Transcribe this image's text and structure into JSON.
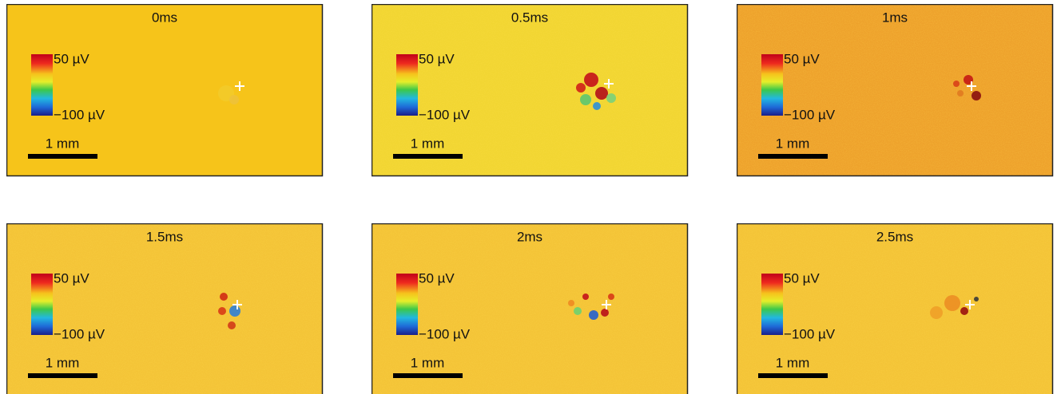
{
  "panels": [
    {
      "title": "0ms",
      "scale_max": "50 µV",
      "scale_min": "−100 µV",
      "scale_bar": "1 mm"
    },
    {
      "title": "0.5ms",
      "scale_max": "50 µV",
      "scale_min": "−100 µV",
      "scale_bar": "1 mm"
    },
    {
      "title": "1ms",
      "scale_max": "50 µV",
      "scale_min": "−100 µV",
      "scale_bar": "1 mm"
    },
    {
      "title": "1.5ms",
      "scale_max": "50 µV",
      "scale_min": "−100 µV",
      "scale_bar": "1 mm"
    },
    {
      "title": "2ms",
      "scale_max": "50 µV",
      "scale_min": "−100 µV",
      "scale_bar": "1 mm"
    },
    {
      "title": "2.5ms",
      "scale_max": "50 µV",
      "scale_min": "−100 µV",
      "scale_bar": "1 mm"
    }
  ]
}
